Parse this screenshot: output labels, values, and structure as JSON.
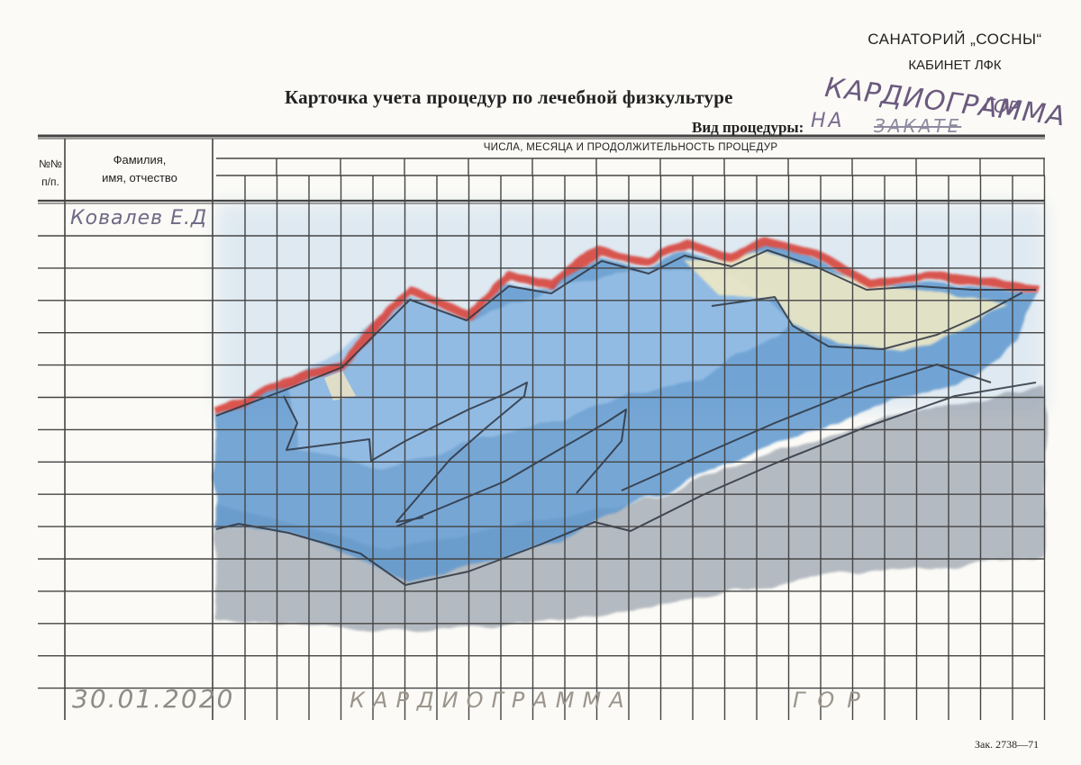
{
  "header": {
    "sanatorium": "САНАТОРИЙ „СОСНЫ“",
    "cabinet": "КАБИНЕТ ЛФК",
    "card_title": "Карточка учета процедур по лечебной физкультуре",
    "procedure_label": "Вид процедуры:",
    "handwritten_title_line1": "КАРДИОГРАММА",
    "handwritten_title_line2": "ГОР",
    "handwritten_procedure": "НА",
    "handwritten_procedure_struck": "ЗАКАТЕ"
  },
  "table": {
    "col_number": "№№\nп/п.",
    "col_name": "Фамилия,\nимя, отчество",
    "col_dates": "ЧИСЛА, МЕСЯЦА И ПРОДОЛЖИТЕЛЬНОСТЬ ПРОЦЕДУР",
    "patient_name": "Ковалев Е.Д"
  },
  "footer": {
    "handwritten_date": "30.01.2020",
    "handwritten_caption_1": "КАРДИОГРАММА",
    "handwritten_caption_2": "ГОР",
    "order_code": "Зак. 2738—71"
  },
  "colors": {
    "paper": "#fbfaf6",
    "grid": "#444444",
    "sky": "#c9dff0",
    "mountain_blue": "#5f9ad0",
    "mountain_light": "#a9cbea",
    "ridge_red": "#d8453e",
    "shadow_gray": "#8e98a6",
    "snow": "#f6edc7",
    "pencil": "#2e3440"
  }
}
